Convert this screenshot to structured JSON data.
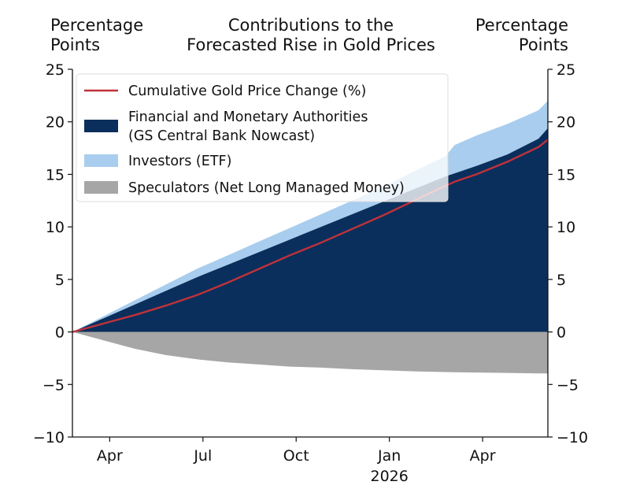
{
  "header": {
    "left_line1": "Percentage",
    "left_line2": "Points",
    "title_line1": "Contributions to the",
    "title_line2": "Forecasted Rise in Gold Prices",
    "right_line1": "Percentage",
    "right_line2": "Points"
  },
  "chart_data": {
    "type": "area",
    "title": "Contributions to the Forecasted Rise in Gold Prices",
    "ylabel_left": "Percentage Points",
    "ylabel_right": "Percentage Points",
    "ylim": [
      -10,
      25
    ],
    "yticks": [
      25,
      20,
      15,
      10,
      5,
      0,
      -5,
      -10
    ],
    "ytick_labels": [
      "25",
      "20",
      "15",
      "10",
      "5",
      "0",
      "−5",
      "−10"
    ],
    "xlim": [
      0,
      15.3
    ],
    "xticks": [
      {
        "x": 1.2,
        "label": "Apr"
      },
      {
        "x": 4.2,
        "label": "Jul"
      },
      {
        "x": 7.2,
        "label": "Oct"
      },
      {
        "x": 10.2,
        "label": "Jan",
        "sublabel": "2026"
      },
      {
        "x": 13.2,
        "label": "Apr"
      }
    ],
    "x": [
      0,
      1,
      2,
      3,
      4,
      5,
      6,
      7,
      8,
      9,
      10,
      11,
      12,
      12.3,
      13,
      14,
      15,
      15.3
    ],
    "series": [
      {
        "name": "Financial and Monetary Authorities (GS Central Bank Nowcast)",
        "kind": "stacked-area-top",
        "color": "#0a2f5c",
        "values": [
          0,
          1.3,
          2.6,
          3.9,
          5.2,
          6.4,
          7.6,
          8.8,
          10.0,
          11.2,
          12.4,
          13.6,
          14.8,
          15.1,
          15.8,
          16.9,
          18.4,
          19.4
        ]
      },
      {
        "name": "Investors (ETF)",
        "kind": "stacked-area-top",
        "color": "#a9cdee",
        "values": [
          0,
          1.5,
          3.0,
          4.5,
          6.0,
          7.3,
          8.6,
          9.9,
          11.2,
          12.5,
          13.8,
          15.3,
          16.7,
          17.8,
          18.7,
          19.8,
          21.1,
          22.0
        ]
      },
      {
        "name": "Speculators (Net Long Managed Money)",
        "kind": "negative-area",
        "color": "#a6a6a6",
        "values": [
          0,
          -0.8,
          -1.6,
          -2.2,
          -2.6,
          -2.9,
          -3.1,
          -3.3,
          -3.4,
          -3.55,
          -3.65,
          -3.75,
          -3.82,
          -3.84,
          -3.86,
          -3.9,
          -3.95,
          -3.95
        ]
      },
      {
        "name": "Cumulative Gold Price Change (%)",
        "kind": "line",
        "color": "#c0323a",
        "values": [
          0,
          0.8,
          1.6,
          2.5,
          3.5,
          4.7,
          6.0,
          7.3,
          8.5,
          9.8,
          11.1,
          12.5,
          13.9,
          14.3,
          15.0,
          16.2,
          17.6,
          18.3
        ]
      }
    ],
    "legend": [
      {
        "label": "Cumulative Gold Price Change (%)",
        "swatch": "line",
        "color": "#c0323a"
      },
      {
        "label": "Financial and Monetary Authorities",
        "label2": "(GS Central Bank Nowcast)",
        "swatch": "patch",
        "color": "#0a2f5c"
      },
      {
        "label": "Investors (ETF)",
        "swatch": "patch",
        "color": "#a9cdee"
      },
      {
        "label": "Speculators (Net Long Managed Money)",
        "swatch": "patch",
        "color": "#a6a6a6"
      }
    ],
    "legend_position": "top-left"
  }
}
